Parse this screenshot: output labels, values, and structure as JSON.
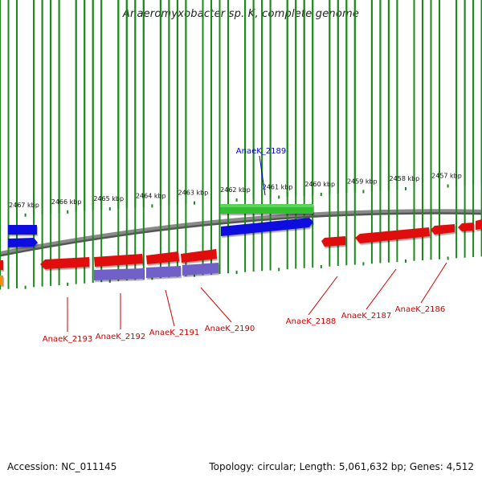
{
  "title": "Anaeromyxobacter sp. K, complete genome",
  "footer": {
    "accession": "Accession: NC_011145",
    "summary": "Topology: circular; Length: 5,061,632 bp; Genes: 4,512"
  },
  "colors": {
    "forward_cds": "#1010e0",
    "reverse_cds": "#e01010",
    "forward_gene": "#30c030",
    "reverse_gene": "#7060c8",
    "other_feature": "#f09010",
    "backbone": "#8a8a8a",
    "ticks": "#1a8a1a",
    "label_forward": "#0000cc",
    "label_reverse": "#cc0000"
  },
  "scale_labels": [
    "2467 kbp",
    "2466 kbp",
    "2465 kbp",
    "2464 kbp",
    "2463 kbp",
    "2462 kbp",
    "2461 kbp",
    "2460 kbp",
    "2459 kbp",
    "2458 kbp",
    "2457 kbp"
  ],
  "gene_labels": [
    {
      "name": "AnaeK_2189",
      "strand": "forward"
    },
    {
      "name": "AnaeK_2193",
      "strand": "reverse"
    },
    {
      "name": "AnaeK_2192",
      "strand": "reverse"
    },
    {
      "name": "AnaeK_2191",
      "strand": "reverse"
    },
    {
      "name": "AnaeK_2190",
      "strand": "reverse"
    },
    {
      "name": "AnaeK_2188",
      "strand": "reverse"
    },
    {
      "name": "AnaeK_2187",
      "strand": "reverse"
    },
    {
      "name": "AnaeK_2186",
      "strand": "reverse"
    }
  ]
}
